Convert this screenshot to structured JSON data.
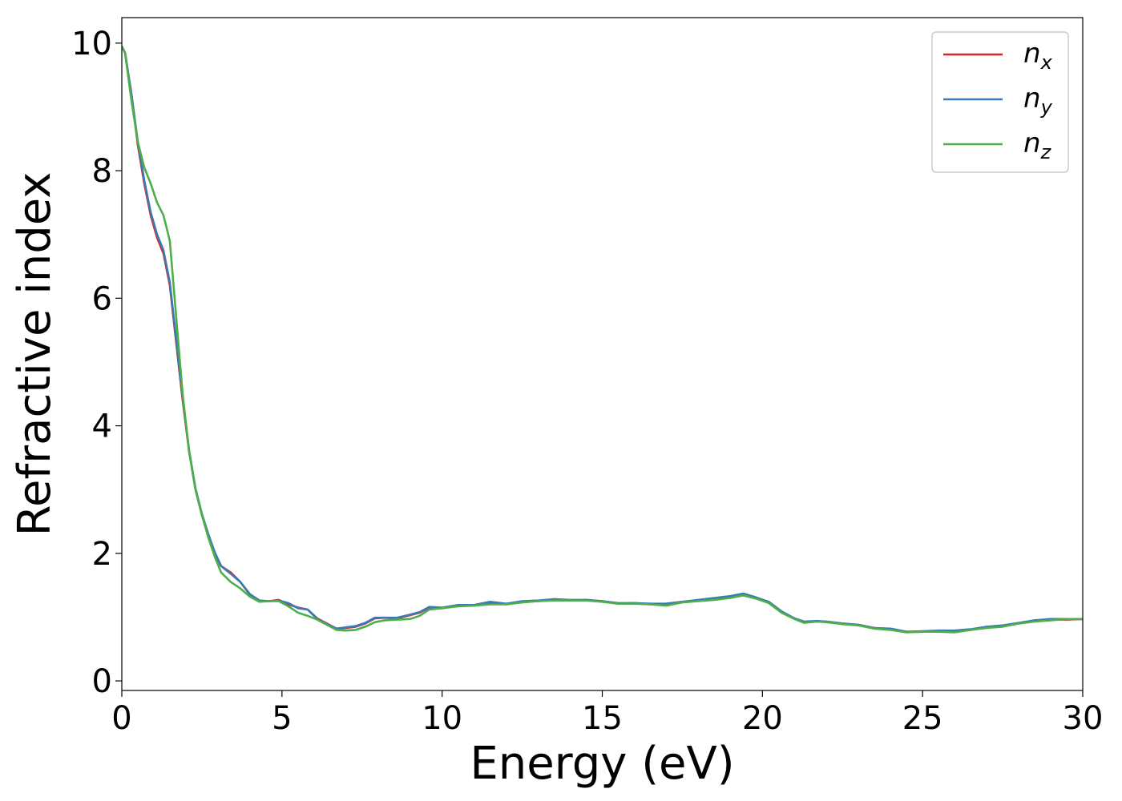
{
  "chart_data": {
    "type": "line",
    "xlabel": "Energy (eV)",
    "ylabel": "Refractive index",
    "xlim": [
      0,
      30
    ],
    "ylim": [
      -0.15,
      10.4
    ],
    "xticks": [
      0,
      5,
      10,
      15,
      20,
      25,
      30
    ],
    "xtick_labels": [
      "0",
      "5",
      "10",
      "15",
      "20",
      "25",
      "30"
    ],
    "yticks": [
      0,
      2,
      4,
      6,
      8,
      10
    ],
    "ytick_labels": [
      "0",
      "2",
      "4",
      "6",
      "8",
      "10"
    ],
    "grid": false,
    "legend_position": "top-right",
    "series": [
      {
        "name": "n",
        "sub": "x",
        "color": "#d62728",
        "points": [
          [
            0,
            9.95
          ],
          [
            0.1,
            9.85
          ],
          [
            0.3,
            9.2
          ],
          [
            0.5,
            8.4
          ],
          [
            0.7,
            7.8
          ],
          [
            0.9,
            7.3
          ],
          [
            1.1,
            6.95
          ],
          [
            1.3,
            6.7
          ],
          [
            1.5,
            6.2
          ],
          [
            1.7,
            5.3
          ],
          [
            1.9,
            4.4
          ],
          [
            2.1,
            3.6
          ],
          [
            2.3,
            3.0
          ],
          [
            2.5,
            2.6
          ],
          [
            2.7,
            2.3
          ],
          [
            2.9,
            2.0
          ],
          [
            3.1,
            1.8
          ],
          [
            3.4,
            1.7
          ],
          [
            3.7,
            1.55
          ],
          [
            4.0,
            1.35
          ],
          [
            4.3,
            1.25
          ],
          [
            4.6,
            1.25
          ],
          [
            4.9,
            1.27
          ],
          [
            5.2,
            1.2
          ],
          [
            5.5,
            1.15
          ],
          [
            5.8,
            1.12
          ],
          [
            6.1,
            0.98
          ],
          [
            6.4,
            0.9
          ],
          [
            6.7,
            0.82
          ],
          [
            7.0,
            0.83
          ],
          [
            7.3,
            0.85
          ],
          [
            7.6,
            0.9
          ],
          [
            7.9,
            0.98
          ],
          [
            8.2,
            0.99
          ],
          [
            8.6,
            0.98
          ],
          [
            9.0,
            1.03
          ],
          [
            9.3,
            1.07
          ],
          [
            9.6,
            1.15
          ],
          [
            10.0,
            1.14
          ],
          [
            10.5,
            1.18
          ],
          [
            11.0,
            1.18
          ],
          [
            11.5,
            1.23
          ],
          [
            12.0,
            1.2
          ],
          [
            12.5,
            1.24
          ],
          [
            13.0,
            1.25
          ],
          [
            13.5,
            1.28
          ],
          [
            14.0,
            1.26
          ],
          [
            14.5,
            1.27
          ],
          [
            15.0,
            1.25
          ],
          [
            15.5,
            1.21
          ],
          [
            16.0,
            1.22
          ],
          [
            16.5,
            1.2
          ],
          [
            17.0,
            1.21
          ],
          [
            17.5,
            1.24
          ],
          [
            18.0,
            1.26
          ],
          [
            18.5,
            1.29
          ],
          [
            19.0,
            1.32
          ],
          [
            19.4,
            1.36
          ],
          [
            19.8,
            1.3
          ],
          [
            20.2,
            1.23
          ],
          [
            20.6,
            1.08
          ],
          [
            21.0,
            0.98
          ],
          [
            21.3,
            0.92
          ],
          [
            21.7,
            0.93
          ],
          [
            22.0,
            0.93
          ],
          [
            22.5,
            0.9
          ],
          [
            23.0,
            0.88
          ],
          [
            23.5,
            0.83
          ],
          [
            24.0,
            0.81
          ],
          [
            24.5,
            0.77
          ],
          [
            25.0,
            0.77
          ],
          [
            25.5,
            0.78
          ],
          [
            26.0,
            0.77
          ],
          [
            26.5,
            0.8
          ],
          [
            27.0,
            0.84
          ],
          [
            27.5,
            0.86
          ],
          [
            28.0,
            0.9
          ],
          [
            28.5,
            0.94
          ],
          [
            29.0,
            0.96
          ],
          [
            29.5,
            0.96
          ],
          [
            30.0,
            0.97
          ]
        ]
      },
      {
        "name": "n",
        "sub": "y",
        "color": "#3a7ab5",
        "points": [
          [
            0,
            9.95
          ],
          [
            0.1,
            9.85
          ],
          [
            0.3,
            9.2
          ],
          [
            0.5,
            8.45
          ],
          [
            0.7,
            7.85
          ],
          [
            0.9,
            7.35
          ],
          [
            1.1,
            7.0
          ],
          [
            1.3,
            6.75
          ],
          [
            1.5,
            6.25
          ],
          [
            1.7,
            5.35
          ],
          [
            1.9,
            4.45
          ],
          [
            2.1,
            3.62
          ],
          [
            2.3,
            3.02
          ],
          [
            2.5,
            2.62
          ],
          [
            2.7,
            2.3
          ],
          [
            2.9,
            2.02
          ],
          [
            3.1,
            1.8
          ],
          [
            3.4,
            1.68
          ],
          [
            3.7,
            1.55
          ],
          [
            4.0,
            1.36
          ],
          [
            4.3,
            1.26
          ],
          [
            4.6,
            1.25
          ],
          [
            4.9,
            1.26
          ],
          [
            5.2,
            1.22
          ],
          [
            5.5,
            1.14
          ],
          [
            5.8,
            1.12
          ],
          [
            6.1,
            0.97
          ],
          [
            6.4,
            0.89
          ],
          [
            6.7,
            0.82
          ],
          [
            7.0,
            0.84
          ],
          [
            7.3,
            0.86
          ],
          [
            7.6,
            0.91
          ],
          [
            7.9,
            0.99
          ],
          [
            8.2,
            0.99
          ],
          [
            8.6,
            0.99
          ],
          [
            9.0,
            1.04
          ],
          [
            9.3,
            1.08
          ],
          [
            9.6,
            1.16
          ],
          [
            10.0,
            1.15
          ],
          [
            10.5,
            1.19
          ],
          [
            11.0,
            1.19
          ],
          [
            11.5,
            1.24
          ],
          [
            12.0,
            1.21
          ],
          [
            12.5,
            1.25
          ],
          [
            13.0,
            1.26
          ],
          [
            13.5,
            1.28
          ],
          [
            14.0,
            1.27
          ],
          [
            14.5,
            1.27
          ],
          [
            15.0,
            1.25
          ],
          [
            15.5,
            1.22
          ],
          [
            16.0,
            1.22
          ],
          [
            16.5,
            1.21
          ],
          [
            17.0,
            1.21
          ],
          [
            17.5,
            1.24
          ],
          [
            18.0,
            1.27
          ],
          [
            18.5,
            1.3
          ],
          [
            19.0,
            1.33
          ],
          [
            19.4,
            1.37
          ],
          [
            19.8,
            1.31
          ],
          [
            20.2,
            1.24
          ],
          [
            20.6,
            1.09
          ],
          [
            21.0,
            0.98
          ],
          [
            21.3,
            0.93
          ],
          [
            21.7,
            0.94
          ],
          [
            22.0,
            0.93
          ],
          [
            22.5,
            0.9
          ],
          [
            23.0,
            0.88
          ],
          [
            23.5,
            0.83
          ],
          [
            24.0,
            0.82
          ],
          [
            24.5,
            0.77
          ],
          [
            25.0,
            0.78
          ],
          [
            25.5,
            0.79
          ],
          [
            26.0,
            0.79
          ],
          [
            26.5,
            0.81
          ],
          [
            27.0,
            0.85
          ],
          [
            27.5,
            0.87
          ],
          [
            28.0,
            0.91
          ],
          [
            28.5,
            0.95
          ],
          [
            29.0,
            0.97
          ],
          [
            29.5,
            0.97
          ],
          [
            30.0,
            0.97
          ]
        ]
      },
      {
        "name": "n",
        "sub": "z",
        "color": "#4daf4a",
        "points": [
          [
            0,
            9.95
          ],
          [
            0.1,
            9.85
          ],
          [
            0.3,
            9.1
          ],
          [
            0.5,
            8.45
          ],
          [
            0.7,
            8.05
          ],
          [
            0.9,
            7.8
          ],
          [
            1.1,
            7.5
          ],
          [
            1.3,
            7.3
          ],
          [
            1.5,
            6.9
          ],
          [
            1.7,
            5.7
          ],
          [
            1.9,
            4.5
          ],
          [
            2.1,
            3.6
          ],
          [
            2.3,
            3.0
          ],
          [
            2.5,
            2.6
          ],
          [
            2.7,
            2.25
          ],
          [
            2.9,
            1.95
          ],
          [
            3.1,
            1.7
          ],
          [
            3.4,
            1.55
          ],
          [
            3.7,
            1.45
          ],
          [
            4.0,
            1.32
          ],
          [
            4.3,
            1.24
          ],
          [
            4.6,
            1.25
          ],
          [
            4.9,
            1.25
          ],
          [
            5.2,
            1.17
          ],
          [
            5.5,
            1.07
          ],
          [
            5.8,
            1.02
          ],
          [
            6.1,
            0.96
          ],
          [
            6.4,
            0.88
          ],
          [
            6.7,
            0.8
          ],
          [
            7.0,
            0.79
          ],
          [
            7.3,
            0.8
          ],
          [
            7.6,
            0.85
          ],
          [
            7.9,
            0.92
          ],
          [
            8.2,
            0.95
          ],
          [
            8.6,
            0.96
          ],
          [
            9.0,
            0.97
          ],
          [
            9.3,
            1.02
          ],
          [
            9.6,
            1.12
          ],
          [
            10.0,
            1.14
          ],
          [
            10.5,
            1.17
          ],
          [
            11.0,
            1.18
          ],
          [
            11.5,
            1.2
          ],
          [
            12.0,
            1.2
          ],
          [
            12.5,
            1.23
          ],
          [
            13.0,
            1.25
          ],
          [
            13.5,
            1.26
          ],
          [
            14.0,
            1.26
          ],
          [
            14.5,
            1.26
          ],
          [
            15.0,
            1.24
          ],
          [
            15.5,
            1.21
          ],
          [
            16.0,
            1.21
          ],
          [
            16.5,
            1.2
          ],
          [
            17.0,
            1.18
          ],
          [
            17.5,
            1.23
          ],
          [
            18.0,
            1.25
          ],
          [
            18.5,
            1.27
          ],
          [
            19.0,
            1.3
          ],
          [
            19.4,
            1.34
          ],
          [
            19.8,
            1.29
          ],
          [
            20.2,
            1.22
          ],
          [
            20.6,
            1.07
          ],
          [
            21.0,
            0.97
          ],
          [
            21.3,
            0.91
          ],
          [
            21.7,
            0.93
          ],
          [
            22.0,
            0.92
          ],
          [
            22.5,
            0.89
          ],
          [
            23.0,
            0.87
          ],
          [
            23.5,
            0.82
          ],
          [
            24.0,
            0.8
          ],
          [
            24.5,
            0.76
          ],
          [
            25.0,
            0.77
          ],
          [
            25.5,
            0.77
          ],
          [
            26.0,
            0.76
          ],
          [
            26.5,
            0.8
          ],
          [
            27.0,
            0.83
          ],
          [
            27.5,
            0.85
          ],
          [
            28.0,
            0.9
          ],
          [
            28.5,
            0.93
          ],
          [
            29.0,
            0.95
          ],
          [
            29.5,
            0.97
          ],
          [
            30.0,
            0.97
          ]
        ]
      }
    ]
  }
}
